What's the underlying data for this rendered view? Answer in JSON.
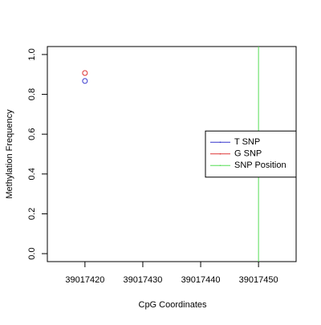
{
  "chart_data": {
    "type": "scatter",
    "xlabel": "CpG Coordinates",
    "ylabel": "Methylation Frequency",
    "series": [
      {
        "name": "T SNP",
        "color": "#3333cc",
        "x": [
          39017420
        ],
        "values": [
          0.867
        ]
      },
      {
        "name": "G SNP",
        "color": "#dd3333",
        "x": [
          39017420
        ],
        "values": [
          0.907
        ]
      }
    ],
    "vlines": [
      {
        "name": "SNP Position",
        "color": "#55dd55",
        "x": 39017450
      }
    ],
    "xlim": [
      39017413.5,
      39017456.5
    ],
    "xticks": [
      39017420,
      39017430,
      39017440,
      39017450
    ],
    "ylim": [
      -0.04,
      1.04
    ],
    "yticks": [
      {
        "value": 0,
        "label": "0.0"
      },
      0.2,
      0.4,
      0.6,
      0.8,
      {
        "value": 1,
        "label": "1.0"
      }
    ],
    "legend": "right"
  }
}
